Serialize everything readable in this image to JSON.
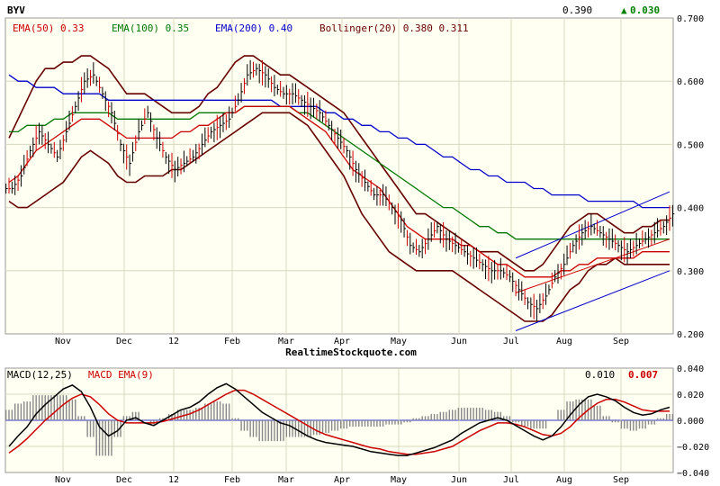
{
  "chart_data": [
    {
      "type": "line",
      "title": "BYV",
      "last_price": "0.390",
      "change": "0.030",
      "change_symbol": "▲",
      "change_color": "#008000",
      "watermark": "RealtimeStockquote.com",
      "x_labels": [
        "Nov",
        "Dec",
        "12",
        "Feb",
        "Mar",
        "Apr",
        "May",
        "Jun",
        "Jul",
        "Aug",
        "Sep"
      ],
      "y_ticks": [
        "0.700",
        "0.600",
        "0.500",
        "0.400",
        "0.300",
        "0.200"
      ],
      "ylim": [
        0.2,
        0.7
      ],
      "grid": true,
      "legend": [
        {
          "label": "EMA(50) 0.33",
          "color": "#cc0000"
        },
        {
          "label": "EMA(100) 0.35",
          "color": "#007700"
        },
        {
          "label": "EMA(200) 0.40",
          "color": "#0000cc"
        },
        {
          "label": "Bollinger(20) 0.380 0.311",
          "color": "#660000"
        }
      ],
      "price_series": [
        0.43,
        0.45,
        0.49,
        0.52,
        0.5,
        0.48,
        0.52,
        0.56,
        0.6,
        0.61,
        0.58,
        0.55,
        0.5,
        0.47,
        0.52,
        0.55,
        0.51,
        0.48,
        0.46,
        0.47,
        0.48,
        0.5,
        0.52,
        0.53,
        0.54,
        0.57,
        0.61,
        0.62,
        0.61,
        0.59,
        0.58,
        0.58,
        0.57,
        0.56,
        0.55,
        0.53,
        0.51,
        0.49,
        0.46,
        0.44,
        0.42,
        0.42,
        0.4,
        0.38,
        0.34,
        0.33,
        0.35,
        0.37,
        0.35,
        0.34,
        0.33,
        0.32,
        0.31,
        0.3,
        0.3,
        0.29,
        0.27,
        0.25,
        0.24,
        0.26,
        0.29,
        0.31,
        0.34,
        0.36,
        0.37,
        0.36,
        0.35,
        0.34,
        0.33,
        0.34,
        0.35,
        0.36,
        0.37,
        0.39
      ],
      "ema50": [
        0.44,
        0.45,
        0.47,
        0.49,
        0.5,
        0.51,
        0.52,
        0.53,
        0.54,
        0.54,
        0.54,
        0.53,
        0.52,
        0.51,
        0.51,
        0.51,
        0.51,
        0.51,
        0.51,
        0.52,
        0.52,
        0.53,
        0.53,
        0.54,
        0.55,
        0.55,
        0.56,
        0.56,
        0.56,
        0.56,
        0.56,
        0.56,
        0.55,
        0.54,
        0.53,
        0.52,
        0.5,
        0.48,
        0.46,
        0.45,
        0.44,
        0.43,
        0.41,
        0.39,
        0.37,
        0.36,
        0.35,
        0.35,
        0.35,
        0.35,
        0.34,
        0.34,
        0.33,
        0.32,
        0.31,
        0.31,
        0.3,
        0.29,
        0.29,
        0.29,
        0.29,
        0.3,
        0.3,
        0.31,
        0.31,
        0.32,
        0.32,
        0.32,
        0.32,
        0.32,
        0.33,
        0.33,
        0.33,
        0.33
      ],
      "ema100": [
        0.52,
        0.52,
        0.53,
        0.53,
        0.53,
        0.54,
        0.54,
        0.55,
        0.55,
        0.55,
        0.55,
        0.55,
        0.54,
        0.54,
        0.54,
        0.54,
        0.54,
        0.54,
        0.54,
        0.54,
        0.54,
        0.55,
        0.55,
        0.55,
        0.55,
        0.55,
        0.56,
        0.56,
        0.56,
        0.56,
        0.56,
        0.56,
        0.55,
        0.55,
        0.54,
        0.53,
        0.52,
        0.51,
        0.5,
        0.49,
        0.48,
        0.47,
        0.46,
        0.45,
        0.44,
        0.43,
        0.42,
        0.41,
        0.4,
        0.4,
        0.39,
        0.38,
        0.37,
        0.37,
        0.36,
        0.36,
        0.35,
        0.35,
        0.35,
        0.35,
        0.35,
        0.35,
        0.35,
        0.35,
        0.35,
        0.35,
        0.35,
        0.35,
        0.35,
        0.35,
        0.35,
        0.35,
        0.35,
        0.35
      ],
      "ema200": [
        0.61,
        0.6,
        0.6,
        0.59,
        0.59,
        0.59,
        0.58,
        0.58,
        0.58,
        0.58,
        0.58,
        0.57,
        0.57,
        0.57,
        0.57,
        0.57,
        0.57,
        0.57,
        0.57,
        0.57,
        0.57,
        0.57,
        0.57,
        0.57,
        0.57,
        0.57,
        0.57,
        0.57,
        0.57,
        0.57,
        0.56,
        0.56,
        0.56,
        0.56,
        0.56,
        0.55,
        0.55,
        0.54,
        0.54,
        0.53,
        0.53,
        0.52,
        0.52,
        0.51,
        0.51,
        0.5,
        0.5,
        0.49,
        0.48,
        0.48,
        0.47,
        0.46,
        0.46,
        0.45,
        0.45,
        0.44,
        0.44,
        0.44,
        0.43,
        0.43,
        0.42,
        0.42,
        0.42,
        0.42,
        0.41,
        0.41,
        0.41,
        0.41,
        0.41,
        0.41,
        0.4,
        0.4,
        0.4,
        0.4
      ],
      "boll_upper": [
        0.51,
        0.54,
        0.57,
        0.6,
        0.62,
        0.62,
        0.63,
        0.63,
        0.64,
        0.64,
        0.63,
        0.62,
        0.6,
        0.58,
        0.58,
        0.58,
        0.57,
        0.56,
        0.55,
        0.55,
        0.55,
        0.56,
        0.58,
        0.59,
        0.61,
        0.63,
        0.64,
        0.64,
        0.63,
        0.62,
        0.61,
        0.61,
        0.6,
        0.59,
        0.58,
        0.57,
        0.56,
        0.55,
        0.53,
        0.51,
        0.49,
        0.47,
        0.45,
        0.43,
        0.41,
        0.39,
        0.39,
        0.38,
        0.37,
        0.36,
        0.35,
        0.34,
        0.33,
        0.33,
        0.33,
        0.32,
        0.31,
        0.3,
        0.3,
        0.31,
        0.33,
        0.35,
        0.37,
        0.38,
        0.39,
        0.39,
        0.38,
        0.37,
        0.36,
        0.36,
        0.37,
        0.37,
        0.38,
        0.38
      ],
      "boll_lower": [
        0.41,
        0.4,
        0.4,
        0.41,
        0.42,
        0.43,
        0.44,
        0.46,
        0.48,
        0.49,
        0.48,
        0.47,
        0.45,
        0.44,
        0.44,
        0.45,
        0.45,
        0.45,
        0.46,
        0.46,
        0.47,
        0.48,
        0.49,
        0.5,
        0.51,
        0.52,
        0.53,
        0.54,
        0.55,
        0.55,
        0.55,
        0.55,
        0.54,
        0.53,
        0.51,
        0.49,
        0.47,
        0.45,
        0.42,
        0.39,
        0.37,
        0.35,
        0.33,
        0.32,
        0.31,
        0.3,
        0.3,
        0.3,
        0.3,
        0.3,
        0.29,
        0.28,
        0.27,
        0.26,
        0.25,
        0.24,
        0.23,
        0.22,
        0.22,
        0.22,
        0.23,
        0.25,
        0.27,
        0.28,
        0.3,
        0.31,
        0.31,
        0.32,
        0.31,
        0.31,
        0.31,
        0.31,
        0.31,
        0.31
      ],
      "trend_upper": [
        [
          56,
          0.32
        ],
        [
          73,
          0.425
        ]
      ],
      "trend_lower": [
        [
          56,
          0.205
        ],
        [
          73,
          0.3
        ]
      ],
      "trend_mid": [
        [
          56,
          0.265
        ],
        [
          73,
          0.35
        ]
      ]
    },
    {
      "type": "line",
      "title": "MACD(12,25)",
      "legend": [
        {
          "label": "MACD(12,25)",
          "color": "#000000"
        },
        {
          "label": "MACD EMA(9)",
          "color": "#cc0000"
        }
      ],
      "macd_value": "0.010",
      "signal_value": "0.007",
      "y_ticks": [
        "0.040",
        "0.020",
        "0.000",
        "−0.020",
        "−0.040"
      ],
      "ylim": [
        -0.04,
        0.04
      ],
      "macd": [
        -0.02,
        -0.012,
        -0.005,
        0.005,
        0.012,
        0.018,
        0.024,
        0.027,
        0.022,
        0.01,
        -0.005,
        -0.012,
        -0.008,
        0.0,
        0.002,
        -0.002,
        -0.004,
        0.0,
        0.004,
        0.008,
        0.01,
        0.014,
        0.02,
        0.025,
        0.028,
        0.024,
        0.018,
        0.012,
        0.006,
        0.002,
        -0.002,
        -0.004,
        -0.008,
        -0.012,
        -0.015,
        -0.017,
        -0.018,
        -0.019,
        -0.02,
        -0.022,
        -0.024,
        -0.025,
        -0.026,
        -0.027,
        -0.027,
        -0.025,
        -0.023,
        -0.021,
        -0.018,
        -0.015,
        -0.01,
        -0.006,
        -0.002,
        0.0,
        0.002,
        0.0,
        -0.004,
        -0.008,
        -0.012,
        -0.015,
        -0.012,
        -0.005,
        0.004,
        0.012,
        0.018,
        0.02,
        0.018,
        0.015,
        0.01,
        0.006,
        0.004,
        0.005,
        0.008,
        0.01
      ],
      "signal": [
        -0.025,
        -0.02,
        -0.014,
        -0.007,
        0.0,
        0.006,
        0.012,
        0.017,
        0.02,
        0.018,
        0.012,
        0.005,
        0.0,
        -0.002,
        -0.002,
        -0.002,
        -0.002,
        -0.001,
        0.001,
        0.003,
        0.005,
        0.008,
        0.012,
        0.016,
        0.02,
        0.023,
        0.023,
        0.02,
        0.016,
        0.012,
        0.008,
        0.004,
        0.0,
        -0.004,
        -0.008,
        -0.011,
        -0.013,
        -0.015,
        -0.017,
        -0.019,
        -0.021,
        -0.022,
        -0.024,
        -0.025,
        -0.026,
        -0.026,
        -0.025,
        -0.024,
        -0.022,
        -0.02,
        -0.016,
        -0.012,
        -0.008,
        -0.005,
        -0.002,
        -0.002,
        -0.003,
        -0.005,
        -0.008,
        -0.011,
        -0.012,
        -0.01,
        -0.005,
        0.002,
        0.008,
        0.013,
        0.016,
        0.016,
        0.014,
        0.011,
        0.008,
        0.007,
        0.007,
        0.007
      ],
      "x_labels": [
        "Nov",
        "Dec",
        "12",
        "Feb",
        "Mar",
        "Apr",
        "May",
        "Jun",
        "Jul",
        "Aug",
        "Sep"
      ]
    }
  ]
}
